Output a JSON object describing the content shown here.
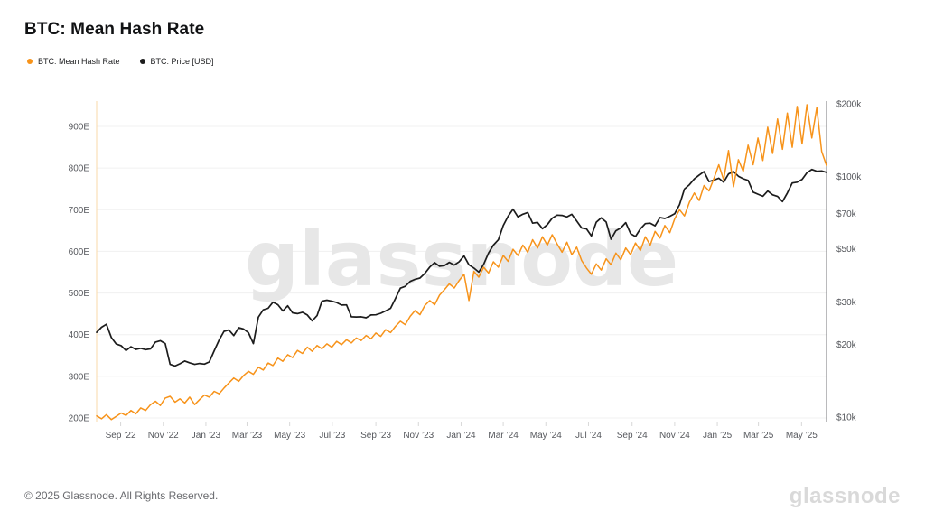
{
  "header": {
    "title": "BTC: Mean Hash Rate"
  },
  "footer": {
    "copyright": "© 2025 Glassnode. All Rights Reserved.",
    "wordmark": "glassnode"
  },
  "watermark": {
    "text": "glassnode"
  },
  "colors": {
    "hash_rate_orange": "#f7931a",
    "price_black": "#1c1c1c",
    "gridline": "#f0f0f0",
    "left_axis_line": "#fad9a8",
    "right_axis_line": "#75767a",
    "axis_text": "#55575c",
    "tick_mark": "#d8d8d8",
    "watermark_gray": "#e7e7e7"
  },
  "chart_data": {
    "type": "line",
    "title": "BTC: Mean Hash Rate",
    "x_start_date": "2022-07-29",
    "x_interval": "weekly",
    "x_tick_labels": [
      {
        "w": 4.9,
        "label": "Sep ’22"
      },
      {
        "w": 13.6,
        "label": "Nov ’22"
      },
      {
        "w": 22.3,
        "label": "Jan ’23"
      },
      {
        "w": 30.7,
        "label": "Mar ’23"
      },
      {
        "w": 39.4,
        "label": "May ’23"
      },
      {
        "w": 48.1,
        "label": "Jul ’23"
      },
      {
        "w": 57.0,
        "label": "Sep ’23"
      },
      {
        "w": 65.7,
        "label": "Nov ’23"
      },
      {
        "w": 74.4,
        "label": "Jan ’24"
      },
      {
        "w": 83.0,
        "label": "Mar ’24"
      },
      {
        "w": 91.7,
        "label": "May ’24"
      },
      {
        "w": 100.4,
        "label": "Jul ’24"
      },
      {
        "w": 109.3,
        "label": "Sep ’24"
      },
      {
        "w": 118.0,
        "label": "Nov ’24"
      },
      {
        "w": 126.7,
        "label": "Jan ’25"
      },
      {
        "w": 135.1,
        "label": "Mar ’25"
      },
      {
        "w": 143.9,
        "label": "May ’25"
      }
    ],
    "left_axis": {
      "unit": "EH/s",
      "scale": "linear",
      "range": [
        200,
        900
      ],
      "ticks": [
        {
          "v": 200,
          "label": "200E"
        },
        {
          "v": 300,
          "label": "300E"
        },
        {
          "v": 400,
          "label": "400E"
        },
        {
          "v": 500,
          "label": "500E"
        },
        {
          "v": 600,
          "label": "600E"
        },
        {
          "v": 700,
          "label": "700E"
        },
        {
          "v": 800,
          "label": "800E"
        },
        {
          "v": 900,
          "label": "900E"
        }
      ]
    },
    "right_axis": {
      "unit": "USD",
      "scale": "log",
      "range": [
        10000,
        200000
      ],
      "ticks": [
        {
          "v": 10000,
          "label": "$10k"
        },
        {
          "v": 20000,
          "label": "$20k"
        },
        {
          "v": 30000,
          "label": "$30k"
        },
        {
          "v": 50000,
          "label": "$50k"
        },
        {
          "v": 70000,
          "label": "$70k"
        },
        {
          "v": 100000,
          "label": "$100k"
        },
        {
          "v": 200000,
          "label": "$200k"
        }
      ]
    },
    "grid": "horizontal-only",
    "legend_position": "top-left",
    "series": [
      {
        "name": "BTC: Mean Hash Rate",
        "axis": "left",
        "color": "#f7931a",
        "width": 1.5,
        "values": [
          205,
          198,
          208,
          196,
          204,
          212,
          206,
          218,
          210,
          224,
          218,
          232,
          240,
          230,
          248,
          252,
          238,
          246,
          236,
          250,
          232,
          244,
          255,
          250,
          264,
          258,
          272,
          284,
          296,
          288,
          302,
          312,
          305,
          322,
          315,
          332,
          326,
          344,
          336,
          352,
          345,
          362,
          355,
          370,
          360,
          374,
          366,
          378,
          370,
          384,
          376,
          388,
          380,
          392,
          386,
          398,
          390,
          404,
          396,
          412,
          405,
          420,
          432,
          424,
          444,
          458,
          448,
          470,
          482,
          472,
          495,
          508,
          522,
          512,
          530,
          545,
          482,
          552,
          538,
          562,
          548,
          575,
          562,
          590,
          576,
          605,
          590,
          615,
          598,
          628,
          608,
          635,
          615,
          640,
          618,
          598,
          622,
          592,
          610,
          578,
          560,
          545,
          570,
          555,
          582,
          568,
          596,
          580,
          608,
          592,
          620,
          602,
          635,
          615,
          648,
          632,
          662,
          645,
          678,
          700,
          685,
          718,
          740,
          722,
          758,
          745,
          775,
          808,
          772,
          842,
          755,
          820,
          792,
          855,
          808,
          872,
          818,
          898,
          835,
          918,
          845,
          932,
          850,
          948,
          858,
          952,
          872,
          945,
          840,
          806
        ]
      },
      {
        "name": "BTC: Price [USD]",
        "axis": "right",
        "color": "#1c1c1c",
        "width": 1.7,
        "values": [
          22500,
          23600,
          24300,
          21400,
          20100,
          19800,
          18900,
          19600,
          19100,
          19300,
          19050,
          19200,
          20500,
          20750,
          20200,
          16550,
          16300,
          16650,
          17100,
          16800,
          16550,
          16700,
          16600,
          16950,
          18850,
          20900,
          22700,
          23000,
          21800,
          23500,
          23200,
          22400,
          20200,
          26000,
          27900,
          28300,
          30000,
          29300,
          27600,
          29000,
          27100,
          26900,
          27250,
          26550,
          25100,
          26400,
          30300,
          30600,
          30300,
          29900,
          29200,
          29250,
          26100,
          26050,
          26100,
          25850,
          26550,
          26600,
          27000,
          27600,
          28300,
          31100,
          34300,
          34900,
          36600,
          37350,
          37800,
          39500,
          42000,
          43800,
          42300,
          42600,
          43900,
          42800,
          44200,
          46700,
          42900,
          41600,
          40000,
          43100,
          48000,
          51800,
          54500,
          62400,
          68300,
          73000,
          67800,
          69600,
          70700,
          63900,
          64300,
          60600,
          63000,
          67000,
          69000,
          68800,
          67800,
          69500,
          65200,
          61000,
          60500,
          56500,
          64500,
          67200,
          64600,
          54800,
          59400,
          61000,
          64200,
          57800,
          56200,
          60500,
          63600,
          63900,
          62300,
          67400,
          66800,
          68200,
          69900,
          76300,
          88500,
          92300,
          97500,
          101200,
          104600,
          95100,
          96400,
          98200,
          94500,
          102300,
          104700,
          100100,
          97700,
          96200,
          86000,
          84300,
          82600,
          86900,
          83800,
          82500,
          78500,
          85200,
          93800,
          94500,
          97000,
          103400,
          106800,
          104900,
          105300,
          103900
        ]
      }
    ]
  }
}
